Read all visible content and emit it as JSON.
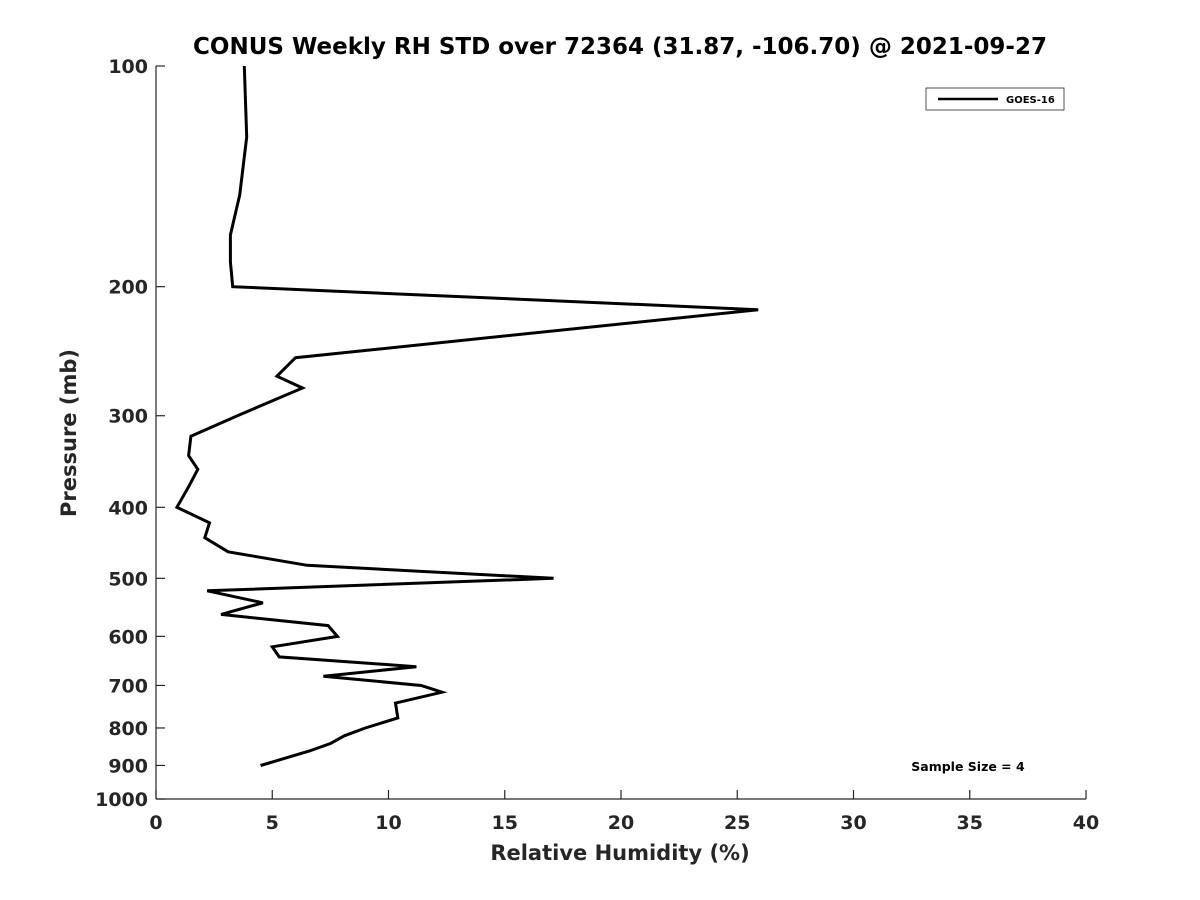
{
  "chart_data": {
    "type": "line",
    "title": "CONUS Weekly RH STD over 72364 (31.87, -106.70) @ 2021-09-27",
    "xlabel": "Relative Humidity (%)",
    "ylabel": "Pressure (mb)",
    "xlim": [
      0,
      40
    ],
    "ylim": [
      100,
      1000
    ],
    "y_scale": "log",
    "y_direction": "reversed",
    "x_ticks": [
      0,
      5,
      10,
      15,
      20,
      25,
      30,
      35,
      40
    ],
    "y_ticks": [
      100,
      200,
      300,
      400,
      500,
      600,
      700,
      800,
      900,
      1000
    ],
    "grid": false,
    "legend_position": "top-right",
    "series": [
      {
        "name": "GOES-16",
        "color": "#000000",
        "points": [
          {
            "x": 3.8,
            "y": 100
          },
          {
            "x": 3.9,
            "y": 125
          },
          {
            "x": 3.6,
            "y": 150
          },
          {
            "x": 3.2,
            "y": 170
          },
          {
            "x": 3.2,
            "y": 185
          },
          {
            "x": 3.3,
            "y": 200
          },
          {
            "x": 25.9,
            "y": 215
          },
          {
            "x": 6.0,
            "y": 250
          },
          {
            "x": 5.2,
            "y": 265
          },
          {
            "x": 6.3,
            "y": 275
          },
          {
            "x": 3.5,
            "y": 300
          },
          {
            "x": 1.5,
            "y": 320
          },
          {
            "x": 1.4,
            "y": 340
          },
          {
            "x": 1.8,
            "y": 355
          },
          {
            "x": 1.4,
            "y": 375
          },
          {
            "x": 0.9,
            "y": 400
          },
          {
            "x": 2.3,
            "y": 420
          },
          {
            "x": 2.1,
            "y": 440
          },
          {
            "x": 3.1,
            "y": 460
          },
          {
            "x": 6.5,
            "y": 480
          },
          {
            "x": 17.1,
            "y": 500
          },
          {
            "x": 2.2,
            "y": 520
          },
          {
            "x": 4.6,
            "y": 540
          },
          {
            "x": 2.8,
            "y": 560
          },
          {
            "x": 7.4,
            "y": 580
          },
          {
            "x": 7.8,
            "y": 600
          },
          {
            "x": 5.0,
            "y": 620
          },
          {
            "x": 5.3,
            "y": 640
          },
          {
            "x": 11.2,
            "y": 660
          },
          {
            "x": 7.2,
            "y": 680
          },
          {
            "x": 11.4,
            "y": 700
          },
          {
            "x": 12.3,
            "y": 715
          },
          {
            "x": 10.3,
            "y": 740
          },
          {
            "x": 10.4,
            "y": 775
          },
          {
            "x": 9.0,
            "y": 800
          },
          {
            "x": 8.1,
            "y": 820
          },
          {
            "x": 7.5,
            "y": 840
          },
          {
            "x": 6.6,
            "y": 860
          },
          {
            "x": 4.5,
            "y": 900
          }
        ]
      }
    ],
    "annotations": [
      "Sample Size = 4"
    ]
  }
}
